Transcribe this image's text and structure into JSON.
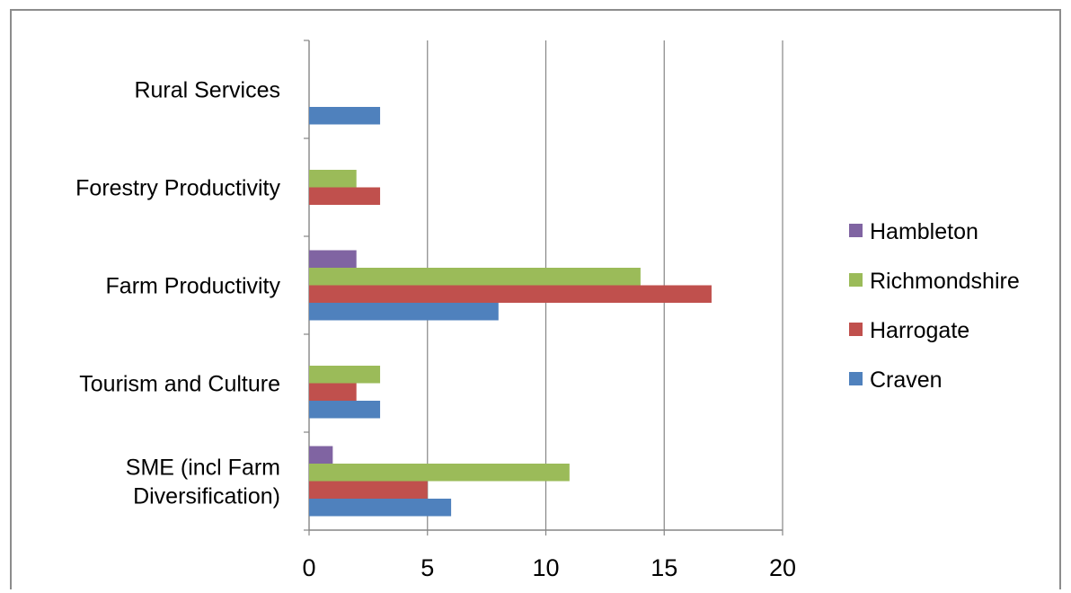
{
  "chart_data": {
    "type": "bar",
    "orientation": "horizontal",
    "title": "",
    "xlabel": "",
    "ylabel": "",
    "categories": [
      [
        "SME (incl Farm",
        "Diversification)"
      ],
      [
        "Tourism and Culture"
      ],
      [
        "Farm Productivity"
      ],
      [
        "Forestry Productivity"
      ],
      [
        "Rural Services"
      ]
    ],
    "series": [
      {
        "name": "Craven",
        "color": "#4F81BD",
        "values": [
          6,
          3,
          8,
          0,
          3
        ]
      },
      {
        "name": "Harrogate",
        "color": "#C0504D",
        "values": [
          5,
          2,
          17,
          3,
          0
        ]
      },
      {
        "name": "Richmondshire",
        "color": "#9BBB59",
        "values": [
          11,
          3,
          14,
          2,
          0
        ]
      },
      {
        "name": "Hambleton",
        "color": "#8064A2",
        "values": [
          1,
          0,
          2,
          0,
          0
        ]
      }
    ],
    "xlim": [
      0,
      20
    ],
    "xticks": [
      0,
      5,
      10,
      15,
      20
    ],
    "grid": "vertical",
    "legend": "right",
    "legend_order": [
      "Hambleton",
      "Richmondshire",
      "Harrogate",
      "Craven"
    ]
  }
}
